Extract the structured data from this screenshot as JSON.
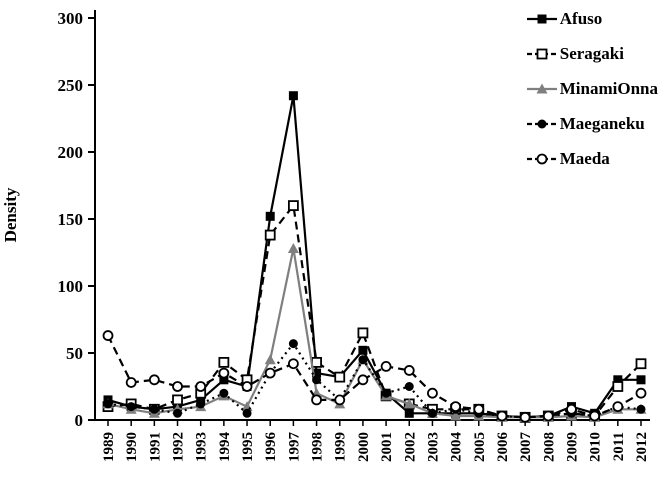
{
  "chart_data": {
    "type": "line",
    "title": "",
    "xlabel": "",
    "ylabel": "Density",
    "ylim": [
      0,
      300
    ],
    "yticks": [
      0,
      50,
      100,
      150,
      200,
      250,
      300
    ],
    "grid": false,
    "legend_position": "top-right",
    "categories": [
      "1989",
      "1990",
      "1991",
      "1992",
      "1993",
      "1994",
      "1995",
      "1996",
      "1997",
      "1998",
      "1999",
      "2000",
      "2001",
      "2002",
      "2003",
      "2004",
      "2005",
      "2006",
      "2007",
      "2008",
      "2009",
      "2010",
      "2011",
      "2012"
    ],
    "series": [
      {
        "name": "Afuso",
        "marker": "square-filled",
        "line": "solid",
        "color": "#000000",
        "values": [
          15,
          10,
          8,
          10,
          15,
          30,
          25,
          152,
          242,
          35,
          32,
          52,
          20,
          5,
          5,
          5,
          5,
          3,
          2,
          3,
          10,
          5,
          30,
          30
        ]
      },
      {
        "name": "Seragaki",
        "marker": "square-open",
        "line": "dashed",
        "color": "#000000",
        "values": [
          10,
          12,
          8,
          15,
          20,
          43,
          30,
          138,
          160,
          43,
          32,
          65,
          18,
          12,
          8,
          8,
          8,
          3,
          2,
          3,
          5,
          3,
          25,
          42
        ]
      },
      {
        "name": "MinamiOnna",
        "marker": "triangle-filled",
        "line": "solid",
        "color": "#7f7f7f",
        "values": [
          12,
          8,
          5,
          8,
          10,
          18,
          10,
          45,
          128,
          20,
          12,
          45,
          18,
          12,
          5,
          3,
          3,
          2,
          2,
          2,
          3,
          2,
          8,
          8
        ]
      },
      {
        "name": "Maeganeku",
        "marker": "circle-filled",
        "line": "dotted",
        "color": "#000000",
        "values": [
          12,
          10,
          8,
          5,
          12,
          20,
          5,
          35,
          57,
          30,
          15,
          45,
          20,
          25,
          5,
          8,
          5,
          3,
          2,
          3,
          5,
          3,
          10,
          8
        ]
      },
      {
        "name": "Maeda",
        "marker": "circle-open",
        "line": "dashed",
        "color": "#000000",
        "values": [
          63,
          28,
          30,
          25,
          25,
          35,
          25,
          35,
          42,
          15,
          15,
          30,
          40,
          37,
          20,
          10,
          8,
          3,
          2,
          3,
          8,
          3,
          10,
          20
        ]
      }
    ]
  }
}
